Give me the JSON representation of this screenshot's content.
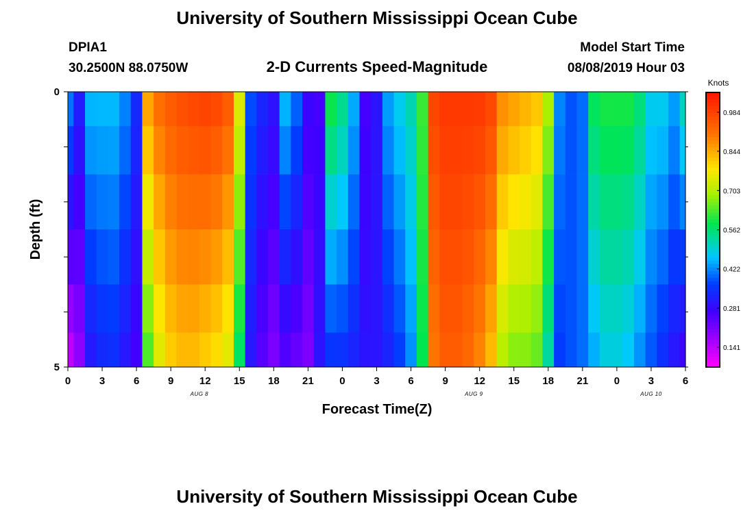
{
  "page": {
    "title": "University of Southern Mississippi Ocean Cube",
    "footer_title": "University of Southern Mississippi Ocean Cube",
    "station_id": "DPIA1",
    "station_coords": "30.2500N 88.0750W",
    "plot_title": "2-D Currents Speed-Magnitude",
    "model_start_label": "Model Start Time",
    "model_start_value": "08/08/2019 Hour 03"
  },
  "chart_data": {
    "type": "heatmap",
    "title": "2-D Currents Speed-Magnitude",
    "xlabel": "Forecast Time(Z)",
    "ylabel": "Depth (ft)",
    "x_range_hours": [
      0,
      54
    ],
    "y_range_ft": [
      0,
      5
    ],
    "y_ticks": [
      "0",
      "5"
    ],
    "x_ticks": [
      "0",
      "3",
      "6",
      "9",
      "12",
      "15",
      "18",
      "21",
      "0",
      "3",
      "6",
      "9",
      "12",
      "15",
      "18",
      "21",
      "0",
      "3",
      "6"
    ],
    "day_labels": [
      {
        "label": "AUG 8",
        "hour": 11.5
      },
      {
        "label": "AUG 9",
        "hour": 35.5
      },
      {
        "label": "AUG 10",
        "hour": 51
      }
    ],
    "colorbar": {
      "label": "Knots",
      "min": 0.07,
      "max": 1.055,
      "tick_labels": [
        "0.984",
        "0.844",
        "0.703",
        "0.562",
        "0.422",
        "0.281",
        "0.141"
      ],
      "tick_values": [
        0.984,
        0.844,
        0.703,
        0.562,
        0.422,
        0.281,
        0.141
      ]
    },
    "depth_layers_ft": [
      0.25,
      1.0,
      2.0,
      3.0,
      4.0,
      4.75
    ],
    "time_hours": [
      0,
      1,
      2,
      3,
      4,
      5,
      6,
      7,
      8,
      9,
      10,
      11,
      12,
      13,
      14,
      15,
      16,
      17,
      18,
      19,
      20,
      21,
      22,
      23,
      24,
      25,
      26,
      27,
      28,
      29,
      30,
      31,
      32,
      33,
      34,
      35,
      36,
      37,
      38,
      39,
      40,
      41,
      42,
      43,
      44,
      45,
      46,
      47,
      48,
      49,
      50,
      51,
      52,
      53,
      54
    ],
    "surface_speed_knots": [
      0.42,
      0.32,
      0.46,
      0.46,
      0.46,
      0.42,
      0.34,
      0.86,
      0.92,
      0.95,
      0.97,
      0.98,
      0.99,
      0.98,
      0.95,
      0.75,
      0.38,
      0.33,
      0.3,
      0.46,
      0.4,
      0.28,
      0.26,
      0.6,
      0.55,
      0.45,
      0.26,
      0.3,
      0.44,
      0.48,
      0.52,
      0.62,
      0.98,
      1.0,
      1.0,
      1.0,
      1.0,
      0.98,
      0.88,
      0.86,
      0.84,
      0.82,
      0.7,
      0.42,
      0.38,
      0.4,
      0.58,
      0.6,
      0.6,
      0.6,
      0.56,
      0.48,
      0.48,
      0.44,
      0.52
    ],
    "bottom_speed_knots": [
      0.12,
      0.18,
      0.3,
      0.33,
      0.34,
      0.3,
      0.26,
      0.62,
      0.74,
      0.8,
      0.82,
      0.82,
      0.8,
      0.78,
      0.74,
      0.56,
      0.3,
      0.24,
      0.2,
      0.24,
      0.22,
      0.2,
      0.3,
      0.34,
      0.34,
      0.32,
      0.3,
      0.3,
      0.32,
      0.36,
      0.42,
      0.58,
      0.9,
      0.94,
      0.94,
      0.92,
      0.88,
      0.82,
      0.7,
      0.66,
      0.66,
      0.64,
      0.52,
      0.36,
      0.38,
      0.4,
      0.44,
      0.48,
      0.48,
      0.46,
      0.42,
      0.38,
      0.34,
      0.3,
      0.26
    ]
  }
}
